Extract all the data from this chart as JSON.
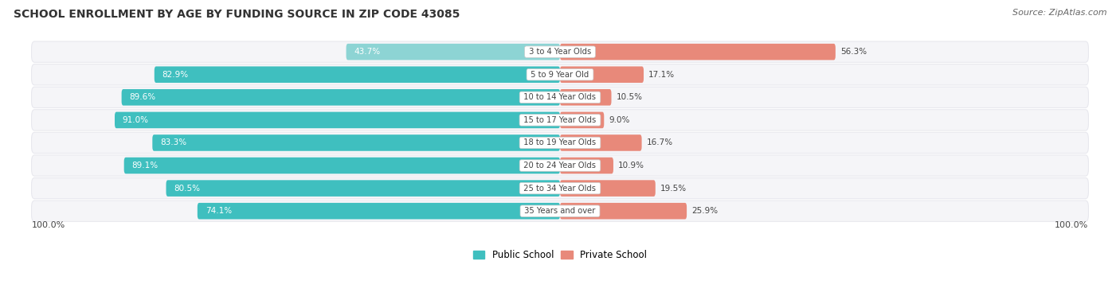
{
  "title": "SCHOOL ENROLLMENT BY AGE BY FUNDING SOURCE IN ZIP CODE 43085",
  "source": "Source: ZipAtlas.com",
  "categories": [
    "3 to 4 Year Olds",
    "5 to 9 Year Old",
    "10 to 14 Year Olds",
    "15 to 17 Year Olds",
    "18 to 19 Year Olds",
    "20 to 24 Year Olds",
    "25 to 34 Year Olds",
    "35 Years and over"
  ],
  "public_values": [
    43.7,
    82.9,
    89.6,
    91.0,
    83.3,
    89.1,
    80.5,
    74.1
  ],
  "private_values": [
    56.3,
    17.1,
    10.5,
    9.0,
    16.7,
    10.9,
    19.5,
    25.9
  ],
  "public_color": "#3FBFBF",
  "public_color_first": "#8DD4D4",
  "private_color": "#E8897A",
  "row_bg_color": "#E8E8EE",
  "row_bg_inner": "#F5F5F8",
  "legend_public": "Public School",
  "legend_private": "Private School",
  "left_label": "100.0%",
  "right_label": "100.0%",
  "scale": 100.0
}
